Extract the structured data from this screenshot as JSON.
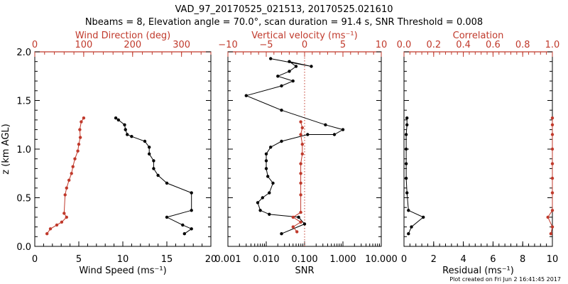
{
  "header": {
    "title": "VAD_97_20170525_021513, 20170525.021610",
    "subtitle": "Nbeams = 8, Elevation angle = 70.0°, scan duration = 91.4 s, SNR Threshold = 0.008"
  },
  "footer": {
    "credit": "Plot created on Fri Jun  2 16:41:45 2017"
  },
  "colors": {
    "primary": "#000000",
    "secondary": "#c0392b"
  },
  "chart_data": [
    {
      "type": "line",
      "panel": "left",
      "ylabel": "z (km AGL)",
      "ylim": [
        0.0,
        2.0
      ],
      "yticks": [
        "0.0",
        "0.5",
        "1.0",
        "1.5",
        "2.0"
      ],
      "xlabel_bottom": "Wind Speed (ms⁻¹)",
      "xlim_bottom": [
        0,
        20
      ],
      "xticks_bottom": [
        "0",
        "5",
        "10",
        "15",
        "20"
      ],
      "xlabel_top": "Wind Direction (deg)",
      "xlim_top": [
        0,
        360
      ],
      "xticks_top": [
        "0",
        "100",
        "200",
        "300"
      ],
      "series": [
        {
          "name": "Wind Speed",
          "axis": "bottom",
          "color": "#000000",
          "points": [
            [
              17.0,
              0.13
            ],
            [
              17.8,
              0.18
            ],
            [
              16.8,
              0.22
            ],
            [
              15.0,
              0.3
            ],
            [
              17.8,
              0.37
            ],
            [
              17.8,
              0.55
            ],
            [
              15.0,
              0.65
            ],
            [
              14.0,
              0.73
            ],
            [
              13.5,
              0.8
            ],
            [
              13.5,
              0.88
            ],
            [
              13.0,
              0.95
            ],
            [
              13.0,
              1.02
            ],
            [
              12.5,
              1.08
            ],
            [
              11.0,
              1.13
            ],
            [
              10.5,
              1.15
            ],
            [
              10.3,
              1.2
            ],
            [
              10.2,
              1.25
            ],
            [
              9.5,
              1.3
            ],
            [
              9.2,
              1.32
            ]
          ]
        },
        {
          "name": "Wind Direction",
          "axis": "top",
          "color": "#c0392b",
          "points": [
            [
              25,
              0.13
            ],
            [
              32,
              0.18
            ],
            [
              45,
              0.22
            ],
            [
              55,
              0.25
            ],
            [
              65,
              0.3
            ],
            [
              60,
              0.34
            ],
            [
              62,
              0.53
            ],
            [
              65,
              0.6
            ],
            [
              70,
              0.68
            ],
            [
              75,
              0.75
            ],
            [
              78,
              0.82
            ],
            [
              82,
              0.9
            ],
            [
              88,
              0.98
            ],
            [
              90,
              1.05
            ],
            [
              93,
              1.12
            ],
            [
              92,
              1.2
            ],
            [
              95,
              1.28
            ],
            [
              100,
              1.32
            ]
          ]
        }
      ]
    },
    {
      "type": "line",
      "panel": "middle",
      "xscale": "log",
      "ylim": [
        0.0,
        2.0
      ],
      "xlabel_bottom": "SNR",
      "xlim_bottom": [
        0.001,
        10
      ],
      "xticks_bottom": [
        "0.001",
        "0.010",
        "0.100",
        "1.000",
        "10.000"
      ],
      "xlabel_top": "Vertical velocity (ms⁻¹)",
      "xlim_top": [
        -10,
        10
      ],
      "xticks_top": [
        "−10",
        "−5",
        "0",
        "5",
        "10"
      ],
      "reference_line": {
        "axis": "top",
        "value": 0,
        "style": "dotted"
      },
      "series": [
        {
          "name": "SNR",
          "axis": "bottom",
          "color": "#000000",
          "points": [
            [
              0.025,
              0.13
            ],
            [
              0.1,
              0.23
            ],
            [
              0.07,
              0.3
            ],
            [
              0.012,
              0.33
            ],
            [
              0.007,
              0.37
            ],
            [
              0.006,
              0.45
            ],
            [
              0.008,
              0.5
            ],
            [
              0.012,
              0.55
            ],
            [
              0.015,
              0.65
            ],
            [
              0.011,
              0.72
            ],
            [
              0.01,
              0.8
            ],
            [
              0.01,
              0.88
            ],
            [
              0.01,
              0.95
            ],
            [
              0.013,
              1.02
            ],
            [
              0.025,
              1.08
            ],
            [
              0.12,
              1.15
            ],
            [
              0.6,
              1.15
            ],
            [
              1.0,
              1.2
            ],
            [
              0.35,
              1.25
            ],
            [
              0.025,
              1.4
            ],
            [
              0.003,
              1.55
            ],
            [
              0.025,
              1.65
            ],
            [
              0.05,
              1.7
            ],
            [
              0.02,
              1.75
            ],
            [
              0.04,
              1.8
            ],
            [
              0.06,
              1.85
            ],
            [
              0.04,
              1.9
            ],
            [
              0.15,
              1.85
            ],
            [
              0.013,
              1.93
            ]
          ]
        },
        {
          "name": "Vertical velocity",
          "axis": "top",
          "color": "#c0392b",
          "points": [
            [
              -1.0,
              0.15
            ],
            [
              -1.5,
              0.2
            ],
            [
              -0.5,
              0.25
            ],
            [
              -1.5,
              0.3
            ],
            [
              -0.5,
              0.35
            ],
            [
              -0.5,
              0.53
            ],
            [
              -0.5,
              0.65
            ],
            [
              -0.5,
              0.75
            ],
            [
              -0.5,
              0.85
            ],
            [
              -0.3,
              0.95
            ],
            [
              -0.3,
              1.05
            ],
            [
              -0.5,
              1.15
            ],
            [
              -0.3,
              1.22
            ],
            [
              -0.5,
              1.28
            ]
          ]
        }
      ]
    },
    {
      "type": "line",
      "panel": "right",
      "ylim": [
        0.0,
        2.0
      ],
      "xlabel_bottom": "Residual (ms⁻¹)",
      "xlim_bottom": [
        0,
        10
      ],
      "xticks_bottom": [
        "0",
        "2",
        "4",
        "6",
        "8",
        "10"
      ],
      "xlabel_top": "Correlation",
      "xlim_top": [
        0,
        1
      ],
      "xticks_top": [
        "0.0",
        "0.2",
        "0.4",
        "0.6",
        "0.8",
        "1.0"
      ],
      "series": [
        {
          "name": "Residual",
          "axis": "bottom",
          "color": "#000000",
          "points": [
            [
              0.3,
              0.13
            ],
            [
              0.5,
              0.2
            ],
            [
              1.3,
              0.3
            ],
            [
              0.3,
              0.37
            ],
            [
              0.2,
              0.55
            ],
            [
              0.15,
              0.7
            ],
            [
              0.15,
              0.85
            ],
            [
              0.15,
              1.0
            ],
            [
              0.15,
              1.15
            ],
            [
              0.2,
              1.25
            ],
            [
              0.2,
              1.32
            ]
          ]
        },
        {
          "name": "Correlation",
          "axis": "top",
          "color": "#c0392b",
          "points": [
            [
              0.99,
              0.13
            ],
            [
              1.0,
              0.2
            ],
            [
              0.97,
              0.3
            ],
            [
              1.0,
              0.37
            ],
            [
              1.0,
              0.55
            ],
            [
              1.0,
              0.7
            ],
            [
              1.0,
              0.85
            ],
            [
              1.0,
              1.0
            ],
            [
              1.0,
              1.15
            ],
            [
              1.0,
              1.25
            ],
            [
              1.0,
              1.32
            ]
          ]
        }
      ]
    }
  ]
}
